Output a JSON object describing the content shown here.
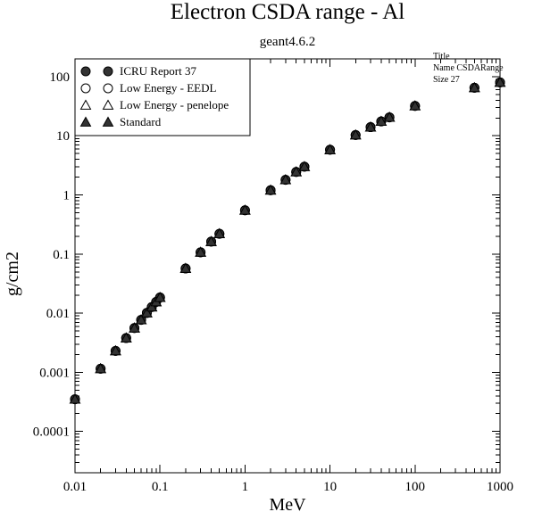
{
  "chart_data": {
    "type": "scatter",
    "title": "Electron CSDA range - Al",
    "subtitle": "geant4.6.2",
    "xlabel": "MeV",
    "ylabel": "g/cm2",
    "x_scale": "log",
    "y_scale": "log",
    "xlim": [
      0.01,
      1000
    ],
    "ylim": [
      2e-05,
      200
    ],
    "grid": false,
    "legend_position": "top-left",
    "x_ticks": [
      {
        "value": 0.01,
        "label": "0.01"
      },
      {
        "value": 0.1,
        "label": "0.1"
      },
      {
        "value": 1,
        "label": "1"
      },
      {
        "value": 10,
        "label": "10"
      },
      {
        "value": 100,
        "label": "100"
      },
      {
        "value": 1000,
        "label": "1000"
      }
    ],
    "y_ticks": [
      {
        "value": 0.0001,
        "label": "0.0001"
      },
      {
        "value": 0.001,
        "label": "0.001"
      },
      {
        "value": 0.01,
        "label": "0.01"
      },
      {
        "value": 0.1,
        "label": "0.1"
      },
      {
        "value": 1,
        "label": "1"
      },
      {
        "value": 10,
        "label": "10"
      },
      {
        "value": 100,
        "label": "100"
      }
    ],
    "series": [
      {
        "name": "ICRU Report 37",
        "marker": "filled-circle",
        "x": [
          0.01,
          0.02,
          0.03,
          0.04,
          0.05,
          0.06,
          0.07,
          0.08,
          0.09,
          0.1,
          0.2,
          0.3,
          0.4,
          0.5,
          1,
          2,
          3,
          4,
          5,
          10,
          20,
          30,
          40,
          50,
          100,
          500,
          1000
        ],
        "y": [
          0.00035,
          0.00115,
          0.0023,
          0.0038,
          0.0056,
          0.0077,
          0.0101,
          0.0127,
          0.0155,
          0.0184,
          0.057,
          0.107,
          0.162,
          0.22,
          0.55,
          1.2,
          1.8,
          2.45,
          3.0,
          5.8,
          10.3,
          14.0,
          17.5,
          20.5,
          32,
          65,
          80
        ]
      },
      {
        "name": "Low Energy - EEDL",
        "marker": "open-circle",
        "x": [
          0.01,
          0.02,
          0.03,
          0.04,
          0.05,
          0.06,
          0.07,
          0.08,
          0.09,
          0.1,
          0.2,
          0.3,
          0.4,
          0.5,
          1,
          2,
          3,
          4,
          5,
          10,
          20,
          30,
          40,
          50,
          100,
          500,
          1000
        ],
        "y": [
          0.00035,
          0.00115,
          0.0023,
          0.0038,
          0.0056,
          0.0077,
          0.0101,
          0.0127,
          0.0155,
          0.0184,
          0.057,
          0.107,
          0.162,
          0.22,
          0.55,
          1.2,
          1.8,
          2.45,
          3.0,
          5.8,
          10.3,
          14.0,
          17.5,
          20.5,
          32,
          65,
          80
        ]
      },
      {
        "name": "Low Energy - penelope",
        "marker": "open-triangle",
        "x": [
          0.01,
          0.02,
          0.03,
          0.04,
          0.05,
          0.06,
          0.07,
          0.08,
          0.09,
          0.1,
          0.2,
          0.3,
          0.4,
          0.5,
          1,
          2,
          3,
          4,
          5,
          10,
          20,
          30,
          40,
          50,
          100,
          500,
          1000
        ],
        "y": [
          0.00035,
          0.00115,
          0.0023,
          0.0038,
          0.0056,
          0.0077,
          0.0101,
          0.0127,
          0.0155,
          0.0184,
          0.057,
          0.107,
          0.162,
          0.22,
          0.55,
          1.2,
          1.8,
          2.45,
          3.0,
          5.8,
          10.3,
          14.0,
          17.5,
          20.5,
          32,
          65,
          80
        ]
      },
      {
        "name": "Standard",
        "marker": "filled-triangle",
        "x": [
          0.01,
          0.02,
          0.03,
          0.04,
          0.05,
          0.06,
          0.07,
          0.08,
          0.09,
          0.1,
          0.2,
          0.3,
          0.4,
          0.5,
          1,
          2,
          3,
          4,
          5,
          10,
          20,
          30,
          40,
          50,
          100,
          500,
          1000
        ],
        "y": [
          0.00035,
          0.00115,
          0.0023,
          0.0038,
          0.0056,
          0.0077,
          0.0101,
          0.0127,
          0.0155,
          0.0184,
          0.057,
          0.107,
          0.162,
          0.22,
          0.55,
          1.2,
          1.8,
          2.45,
          3.0,
          5.8,
          10.3,
          14.0,
          17.5,
          20.5,
          32,
          65,
          80
        ]
      }
    ],
    "info_box": {
      "line1": "Title",
      "line2": "Name  CSDARange",
      "line3": "Size  27"
    },
    "colors": {
      "marker": "#000000",
      "marker_fill": "#333333",
      "axis": "#000000",
      "background": "#ffffff"
    }
  }
}
